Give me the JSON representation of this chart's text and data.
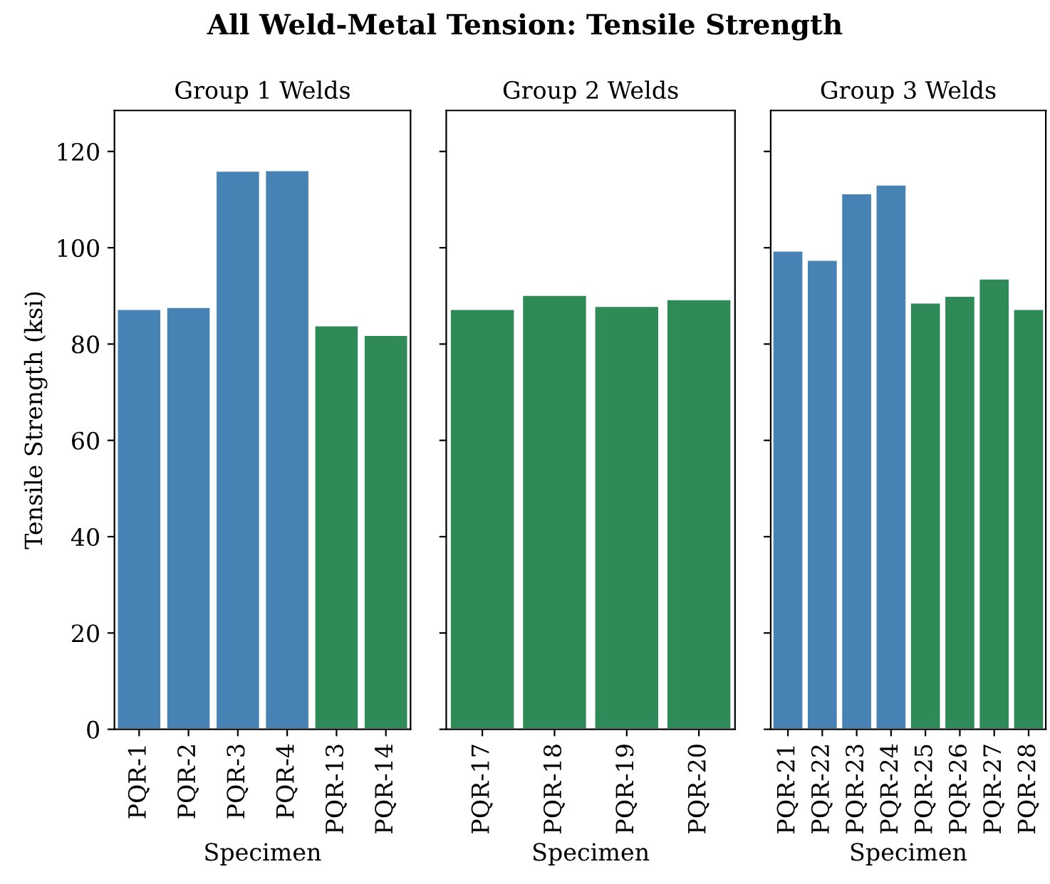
{
  "chart_data": [
    {
      "type": "bar",
      "title": "Group 1 Welds",
      "xlabel": "Specimen",
      "ylabel": "Tensile Strength (ksi)",
      "annotations": [
        "All Weld-Metal Tension: Tensile Strength"
      ],
      "categories": [
        "PQR-1",
        "PQR-2",
        "PQR-3",
        "PQR-4",
        "PQR-13",
        "PQR-14"
      ],
      "values": [
        87.3,
        87.7,
        116.0,
        116.1,
        83.9,
        81.9
      ],
      "colors": [
        "#4682b4",
        "#4682b4",
        "#4682b4",
        "#4682b4",
        "#2e8b57",
        "#2e8b57"
      ],
      "ylim": [
        0,
        128.5
      ],
      "yticks": [
        0,
        20,
        40,
        60,
        80,
        100,
        120
      ],
      "grid": false
    },
    {
      "type": "bar",
      "title": "Group 2 Welds",
      "xlabel": "Specimen",
      "categories": [
        "PQR-17",
        "PQR-18",
        "PQR-19",
        "PQR-20"
      ],
      "values": [
        87.3,
        90.2,
        87.9,
        89.3
      ],
      "colors": [
        "#2e8b57",
        "#2e8b57",
        "#2e8b57",
        "#2e8b57"
      ],
      "ylim": [
        0,
        128.5
      ],
      "yticks": [
        0,
        20,
        40,
        60,
        80,
        100,
        120
      ],
      "tick_labels": "x",
      "grid": false
    },
    {
      "type": "bar",
      "title": "Group 3 Welds",
      "xlabel": "Specimen",
      "categories": [
        "PQR-21",
        "PQR-22",
        "PQR-23",
        "PQR-24",
        "PQR-25",
        "PQR-26",
        "PQR-27",
        "PQR-28"
      ],
      "values": [
        99.4,
        97.5,
        111.3,
        113.1,
        88.6,
        90.0,
        93.6,
        87.3
      ],
      "colors": [
        "#4682b4",
        "#4682b4",
        "#4682b4",
        "#4682b4",
        "#2e8b57",
        "#2e8b57",
        "#2e8b57",
        "#2e8b57"
      ],
      "ylim": [
        0,
        128.5
      ],
      "yticks": [
        0,
        20,
        40,
        60,
        80,
        100,
        120
      ],
      "tick_labels": "x",
      "grid": false
    }
  ]
}
